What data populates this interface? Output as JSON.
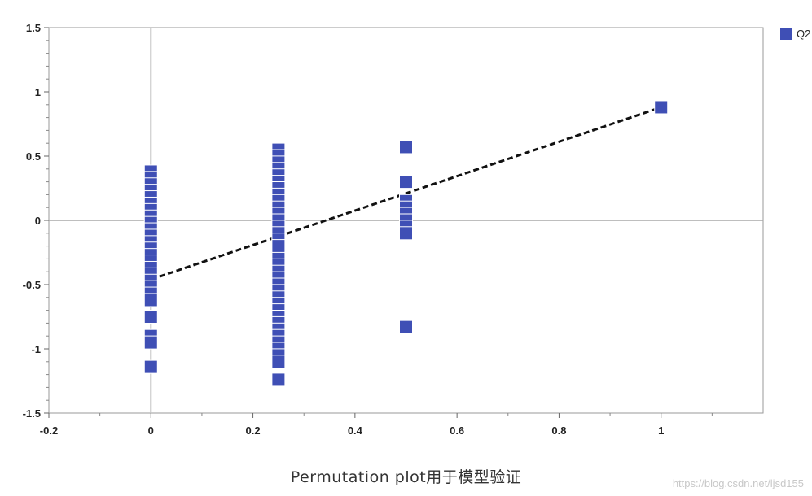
{
  "chart_data": {
    "type": "scatter",
    "title": "",
    "xlabel": "",
    "ylabel": "",
    "xlim": [
      -0.2,
      1.2
    ],
    "ylim": [
      -1.5,
      1.5
    ],
    "x_ticks": [
      "-0.2",
      "0",
      "0.2",
      "0.4",
      "0.6",
      "0.8",
      "1"
    ],
    "y_ticks": [
      "1.5",
      "1",
      "0.5",
      "0",
      "-0.5",
      "-1",
      "-1.5"
    ],
    "x_tick_values": [
      -0.2,
      0,
      0.2,
      0.4,
      0.6,
      0.8,
      1
    ],
    "y_tick_values": [
      1.5,
      1,
      0.5,
      0,
      -0.5,
      -1,
      -1.5
    ],
    "grid": false,
    "legend_position": "top-right",
    "series": [
      {
        "name": "Q2",
        "color": "#3f4fb5",
        "marker": "square",
        "points": [
          [
            0,
            0.38
          ],
          [
            0,
            0.33
          ],
          [
            0,
            0.28
          ],
          [
            0,
            0.23
          ],
          [
            0,
            0.18
          ],
          [
            0,
            0.13
          ],
          [
            0,
            0.08
          ],
          [
            0,
            0.03
          ],
          [
            0,
            -0.02
          ],
          [
            0,
            -0.07
          ],
          [
            0,
            -0.12
          ],
          [
            0,
            -0.17
          ],
          [
            0,
            -0.22
          ],
          [
            0,
            -0.27
          ],
          [
            0,
            -0.32
          ],
          [
            0,
            -0.37
          ],
          [
            0,
            -0.42
          ],
          [
            0,
            -0.47
          ],
          [
            0,
            -0.52
          ],
          [
            0,
            -0.57
          ],
          [
            0,
            -0.62
          ],
          [
            0,
            -0.75
          ],
          [
            0,
            -0.9
          ],
          [
            0,
            -0.95
          ],
          [
            0,
            -1.14
          ],
          [
            0.25,
            0.55
          ],
          [
            0.25,
            0.5
          ],
          [
            0.25,
            0.45
          ],
          [
            0.25,
            0.4
          ],
          [
            0.25,
            0.35
          ],
          [
            0.25,
            0.3
          ],
          [
            0.25,
            0.25
          ],
          [
            0.25,
            0.2
          ],
          [
            0.25,
            0.15
          ],
          [
            0.25,
            0.1
          ],
          [
            0.25,
            0.05
          ],
          [
            0.25,
            0.0
          ],
          [
            0.25,
            -0.05
          ],
          [
            0.25,
            -0.1
          ],
          [
            0.25,
            -0.15
          ],
          [
            0.25,
            -0.2
          ],
          [
            0.25,
            -0.25
          ],
          [
            0.25,
            -0.3
          ],
          [
            0.25,
            -0.35
          ],
          [
            0.25,
            -0.4
          ],
          [
            0.25,
            -0.45
          ],
          [
            0.25,
            -0.5
          ],
          [
            0.25,
            -0.55
          ],
          [
            0.25,
            -0.6
          ],
          [
            0.25,
            -0.65
          ],
          [
            0.25,
            -0.7
          ],
          [
            0.25,
            -0.75
          ],
          [
            0.25,
            -0.8
          ],
          [
            0.25,
            -0.85
          ],
          [
            0.25,
            -0.9
          ],
          [
            0.25,
            -0.95
          ],
          [
            0.25,
            -1.0
          ],
          [
            0.25,
            -1.05
          ],
          [
            0.25,
            -1.1
          ],
          [
            0.25,
            -1.24
          ],
          [
            0.5,
            0.57
          ],
          [
            0.5,
            0.3
          ],
          [
            0.5,
            0.15
          ],
          [
            0.5,
            0.1
          ],
          [
            0.5,
            0.05
          ],
          [
            0.5,
            0.0
          ],
          [
            0.5,
            -0.05
          ],
          [
            0.5,
            -0.1
          ],
          [
            0.5,
            -0.83
          ],
          [
            1,
            0.88
          ]
        ]
      }
    ],
    "regression_line": {
      "style": "dashed",
      "color": "#111111",
      "points": [
        [
          0,
          -0.46
        ],
        [
          1,
          0.88
        ]
      ]
    }
  },
  "caption": "Permutation plot用于模型验证",
  "watermark": "https://blog.csdn.net/ljsd155"
}
